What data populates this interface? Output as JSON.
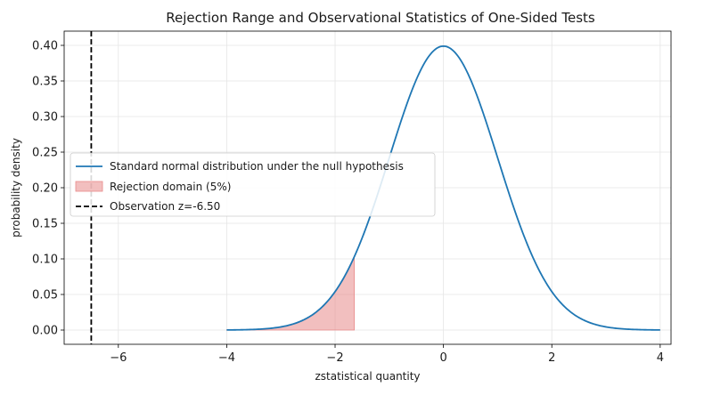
{
  "chart_data": {
    "type": "line",
    "title": "Rejection Range and Observational Statistics of One-Sided Tests",
    "xlabel": "zstatistical quantity",
    "ylabel": "probability density",
    "xlim": [
      -7.0,
      4.2
    ],
    "ylim": [
      -0.02,
      0.42
    ],
    "xticks": [
      -6,
      -4,
      -2,
      0,
      2,
      4
    ],
    "xtick_labels": [
      "−6",
      "−4",
      "−2",
      "0",
      "2",
      "4"
    ],
    "yticks": [
      0.0,
      0.05,
      0.1,
      0.15,
      0.2,
      0.25,
      0.3,
      0.35,
      0.4
    ],
    "ytick_labels": [
      "0.00",
      "0.05",
      "0.10",
      "0.15",
      "0.20",
      "0.25",
      "0.30",
      "0.35",
      "0.40"
    ],
    "grid": true,
    "legend_position": "center-left",
    "curve": {
      "name": "Standard normal distribution under the null hypothesis",
      "x": [
        -4.0,
        -3.5,
        -3.0,
        -2.5,
        -2.0,
        -1.645,
        -1.5,
        -1.0,
        -0.5,
        0.0,
        0.5,
        1.0,
        1.5,
        2.0,
        2.5,
        3.0,
        3.5,
        4.0
      ],
      "y": [
        0.0001,
        0.0009,
        0.0044,
        0.0175,
        0.054,
        0.1031,
        0.1295,
        0.242,
        0.3521,
        0.3989,
        0.3521,
        0.242,
        0.1295,
        0.054,
        0.0175,
        0.0044,
        0.0009,
        0.0001
      ],
      "color": "#1f77b4"
    },
    "rejection_region": {
      "name": "Rejection domain (5%)",
      "x_from": -4.0,
      "x_to": -1.645,
      "fill_color": "#e88a8a"
    },
    "observation": {
      "name": "Observation z=-6.50",
      "x": -6.5,
      "color": "#000000"
    }
  }
}
